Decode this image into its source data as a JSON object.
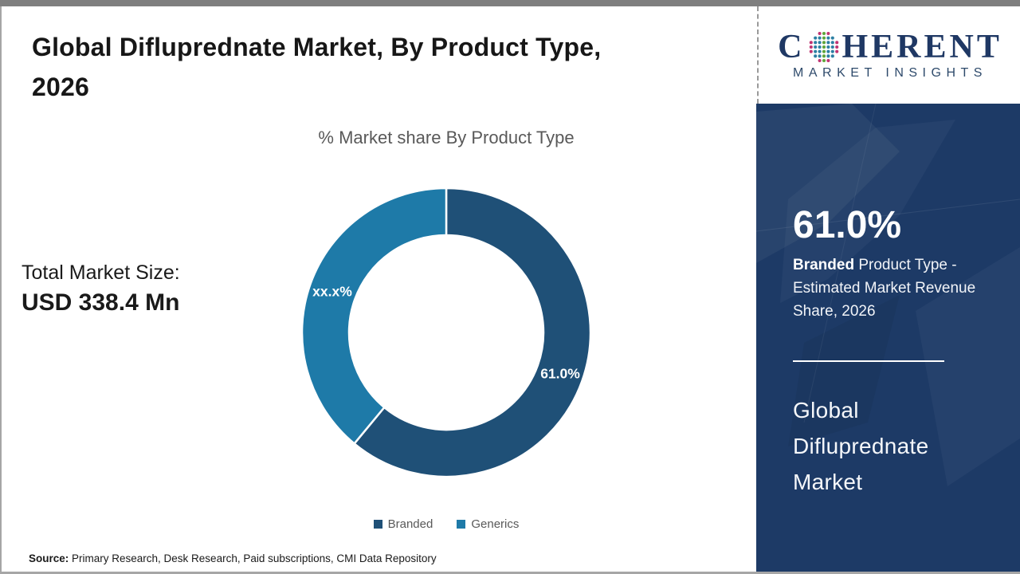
{
  "header": {
    "title_line1": "Global Difluprednate Market, By Product Type,",
    "title_line2": "2026"
  },
  "total_market": {
    "label": "Total Market Size:",
    "value": "USD 338.4 Mn"
  },
  "source": {
    "prefix": "Source:",
    "text": " Primary Research, Desk Research, Paid subscriptions, CMI Data Repository"
  },
  "logo": {
    "part1": "C",
    "part2": "HERENT",
    "subtitle": "MARKET INSIGHTS",
    "navy": "#1f3864",
    "globe_colors": {
      "center": "#5fa53b",
      "inner": "#2c7fa3",
      "outer": "#c03472"
    }
  },
  "sidebar": {
    "background": "#1d3a66",
    "stat_value": "61.0%",
    "stat_desc_bold": "Branded",
    "stat_desc_rest": " Product Type - Estimated Market Revenue Share, 2026",
    "market_name": "Global Difluprednate Market"
  },
  "chart_data": {
    "type": "pie",
    "donut": true,
    "title": "% Market share By Product Type",
    "categories": [
      "Branded",
      "Generics"
    ],
    "values": [
      61.0,
      39.0
    ],
    "slice_labels": [
      "61.0%",
      "xx.x%"
    ],
    "colors": [
      "#1f5077",
      "#1e7aa8"
    ],
    "start_angle_deg": 0,
    "direction": "clockwise",
    "legend_position": "bottom",
    "outer_radius": 181,
    "inner_radius": 122,
    "label_radius": 152,
    "gap_color": "#ffffff"
  }
}
